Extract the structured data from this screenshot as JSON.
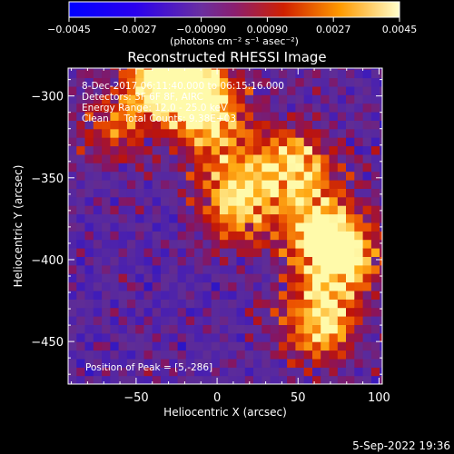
{
  "chart_data": {
    "type": "heatmap",
    "title": "Reconstructed RHESSI Image",
    "xlabel": "Heliocentric X (arcsec)",
    "ylabel": "Heliocentric Y (arcsec)",
    "xlim": [
      -92,
      102
    ],
    "ylim": [
      -476,
      -283
    ],
    "xticks": [
      -50,
      0,
      50,
      100
    ],
    "yticks": [
      -300,
      -350,
      -400,
      -450
    ],
    "colorbar": {
      "ticks": [
        -0.0045,
        -0.0027,
        -0.0009,
        0.0009,
        0.0027,
        0.0045
      ],
      "tick_labels": [
        "-0.0045",
        "-0.0027",
        "-0.00090",
        "0.00090",
        "0.0027",
        "0.0045"
      ],
      "unit_label": "(photons cm⁻² s⁻¹ asec⁻²)",
      "range": [
        -0.0045,
        0.0045
      ]
    },
    "annotations": [
      "8-Dec-2017 06:11:40.000 to 06:15:16.000",
      "Detectors: 3F 6F 8F, AIRC",
      "Energy Range: 12.0 - 25.0 keV",
      "Clean     Total Counts: 9.38E+03"
    ],
    "peak_text": "Position of Peak = [5,-286]",
    "peak": [
      5,
      -286
    ],
    "emission_ridge": [
      {
        "x": -35,
        "y": -290,
        "intensity": 0.9
      },
      {
        "x": -15,
        "y": -300,
        "intensity": 0.95
      },
      {
        "x": 0,
        "y": -330,
        "intensity": 0.55
      },
      {
        "x": 45,
        "y": -345,
        "intensity": 0.85
      },
      {
        "x": 10,
        "y": -370,
        "intensity": 0.8
      },
      {
        "x": 60,
        "y": -385,
        "intensity": 0.75
      },
      {
        "x": 75,
        "y": -400,
        "intensity": 0.85
      },
      {
        "x": 60,
        "y": -440,
        "intensity": 0.9
      },
      {
        "x": -65,
        "y": -320,
        "intensity": 0.5
      }
    ]
  },
  "footer_date": "5-Sep-2022 19:36"
}
